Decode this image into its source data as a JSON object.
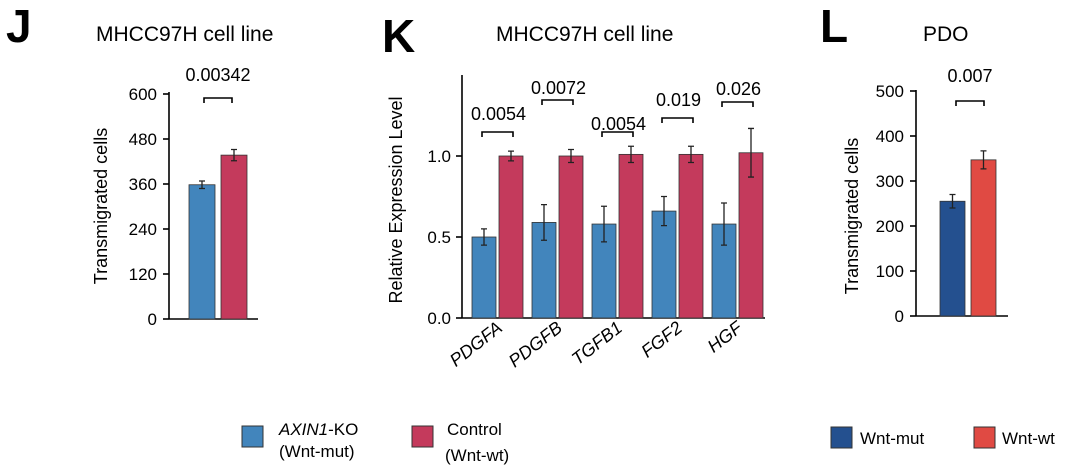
{
  "chart_data": [
    {
      "panel": "J",
      "type": "bar",
      "title": "MHCC97H cell line",
      "ylabel": "Transmigrated cells",
      "xlabel": "",
      "ylim": [
        0,
        600
      ],
      "yticks": [
        "0",
        "120",
        "240",
        "360",
        "480",
        "600"
      ],
      "categories": [
        "AXIN1-KO (Wnt-mut)",
        "Control (Wnt-wt)"
      ],
      "values": [
        358,
        437
      ],
      "errors": [
        10,
        15
      ],
      "colors": [
        "#4285BC",
        "#C43A5C"
      ],
      "pvalues": [
        "0.00342"
      ]
    },
    {
      "panel": "K",
      "type": "bar",
      "title": "MHCC97H cell line",
      "ylabel": "Relative Expression Level",
      "xlabel": "",
      "ylim": [
        0,
        1.5
      ],
      "yticks": [
        "0.0",
        "0.5",
        "1.0"
      ],
      "categories": [
        "PDGFA",
        "PDGFB",
        "TGFB1",
        "FGF2",
        "HGF"
      ],
      "series": [
        {
          "name": "AXIN1-KO (Wnt-mut)",
          "color": "#4285BC",
          "values": [
            0.5,
            0.59,
            0.58,
            0.66,
            0.58
          ],
          "errors": [
            0.05,
            0.11,
            0.11,
            0.09,
            0.13
          ]
        },
        {
          "name": "Control (Wnt-wt)",
          "color": "#C43A5C",
          "values": [
            1.0,
            1.0,
            1.01,
            1.01,
            1.02
          ],
          "errors": [
            0.03,
            0.04,
            0.05,
            0.05,
            0.15
          ]
        }
      ],
      "pvalues": [
        "0.0054",
        "0.0072",
        "0.0054",
        "0.019",
        "0.026"
      ]
    },
    {
      "panel": "L",
      "type": "bar",
      "title": "PDO",
      "ylabel": "Transmigrated cells",
      "xlabel": "",
      "ylim": [
        0,
        500
      ],
      "yticks": [
        "0",
        "100",
        "200",
        "300",
        "400",
        "500"
      ],
      "categories": [
        "Wnt-mut",
        "Wnt-wt"
      ],
      "values": [
        255,
        347
      ],
      "errors": [
        15,
        20
      ],
      "colors": [
        "#24508F",
        "#E04A43"
      ],
      "pvalues": [
        "0.007"
      ]
    }
  ],
  "legends": {
    "left": {
      "items": [
        {
          "italic_part": "AXIN1",
          "rest": "-KO",
          "line2": "(Wnt-mut)",
          "color": "#4285BC"
        },
        {
          "italic_part": "",
          "rest": "Control",
          "line2": "(Wnt-wt)",
          "color": "#C43A5C"
        }
      ]
    },
    "right": {
      "items": [
        {
          "label": "Wnt-mut",
          "color": "#24508F"
        },
        {
          "label": "Wnt-wt",
          "color": "#E04A43"
        }
      ]
    }
  }
}
